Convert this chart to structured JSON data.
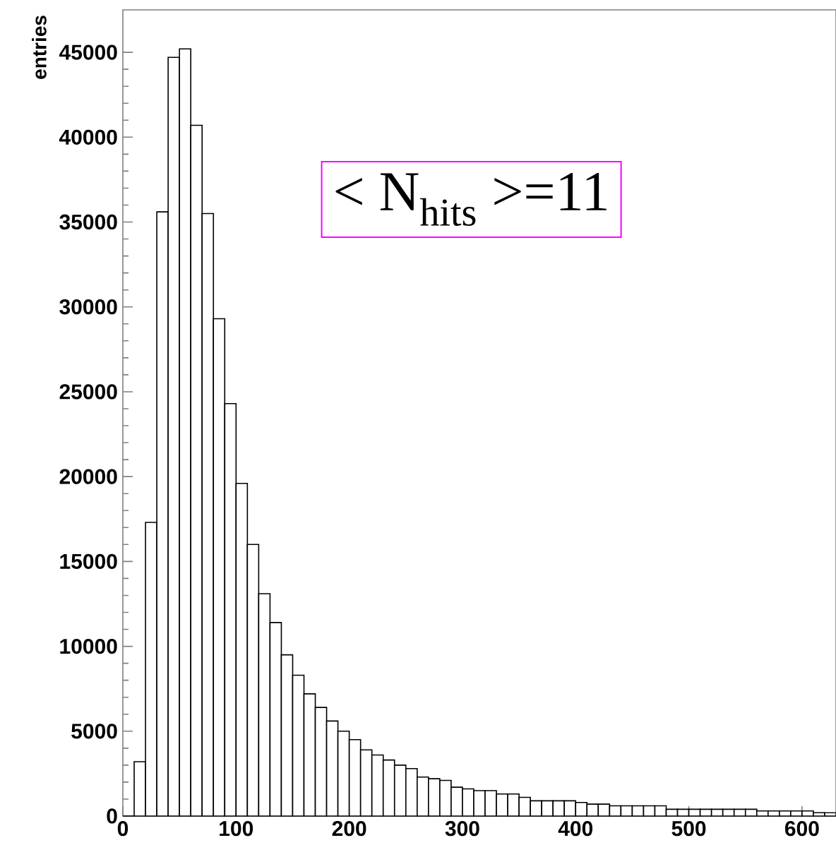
{
  "chart_data": {
    "type": "histogram",
    "ylabel": "entries",
    "bins": [
      0,
      10,
      20,
      30,
      40,
      50,
      60,
      70,
      80,
      90,
      100,
      110,
      120,
      130,
      140,
      150,
      160,
      170,
      180,
      190,
      200,
      210,
      220,
      230,
      240,
      250,
      260,
      270,
      280,
      290,
      300,
      310,
      320,
      330,
      340,
      350,
      360,
      370,
      380,
      390,
      400,
      410,
      420,
      430,
      440,
      450,
      460,
      470,
      480,
      490,
      500,
      510,
      520,
      530,
      540,
      550,
      560,
      570,
      580,
      590,
      600,
      610,
      620,
      630
    ],
    "values": [
      0,
      3200,
      17300,
      35600,
      44700,
      45200,
      40700,
      35500,
      29300,
      24300,
      19600,
      16000,
      13100,
      11400,
      9500,
      8300,
      7200,
      6400,
      5600,
      5000,
      4500,
      3900,
      3600,
      3300,
      3000,
      2800,
      2300,
      2200,
      2100,
      1700,
      1600,
      1500,
      1500,
      1300,
      1300,
      1100,
      900,
      900,
      900,
      900,
      800,
      700,
      700,
      600,
      600,
      600,
      600,
      600,
      400,
      400,
      400,
      400,
      400,
      400,
      400,
      400,
      300,
      300,
      300,
      300,
      300,
      200,
      200
    ],
    "color": "#000000",
    "xlim": [
      0,
      630
    ],
    "ylim": [
      0,
      47500
    ],
    "xticks": [
      0,
      100,
      200,
      300,
      400,
      500,
      600
    ],
    "yticks": [
      0,
      5000,
      10000,
      15000,
      20000,
      25000,
      30000,
      35000,
      40000,
      45000
    ],
    "annotations": [
      "< N$_{hits}$ >=11"
    ],
    "grid": false
  }
}
